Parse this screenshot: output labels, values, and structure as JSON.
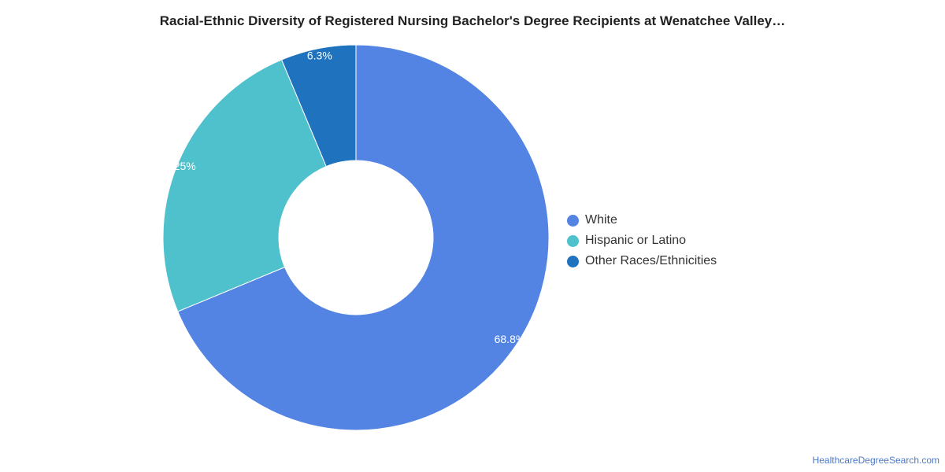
{
  "chart_data": {
    "type": "pie",
    "donut": true,
    "title": "Racial-Ethnic Diversity of Registered Nursing Bachelor's Degree Recipients at Wenatchee Valley…",
    "series": [
      {
        "name": "White",
        "value": 68.8,
        "label": "68.8%",
        "color": "#5384e3"
      },
      {
        "name": "Hispanic or Latino",
        "value": 25,
        "label": "25%",
        "color": "#4fc1cd"
      },
      {
        "name": "Other Races/Ethnicities",
        "value": 6.3,
        "label": "6.3%",
        "color": "#1f72bd"
      }
    ],
    "legend_position": "right"
  },
  "footer": {
    "watermark": "HealthcareDegreeSearch.com"
  }
}
